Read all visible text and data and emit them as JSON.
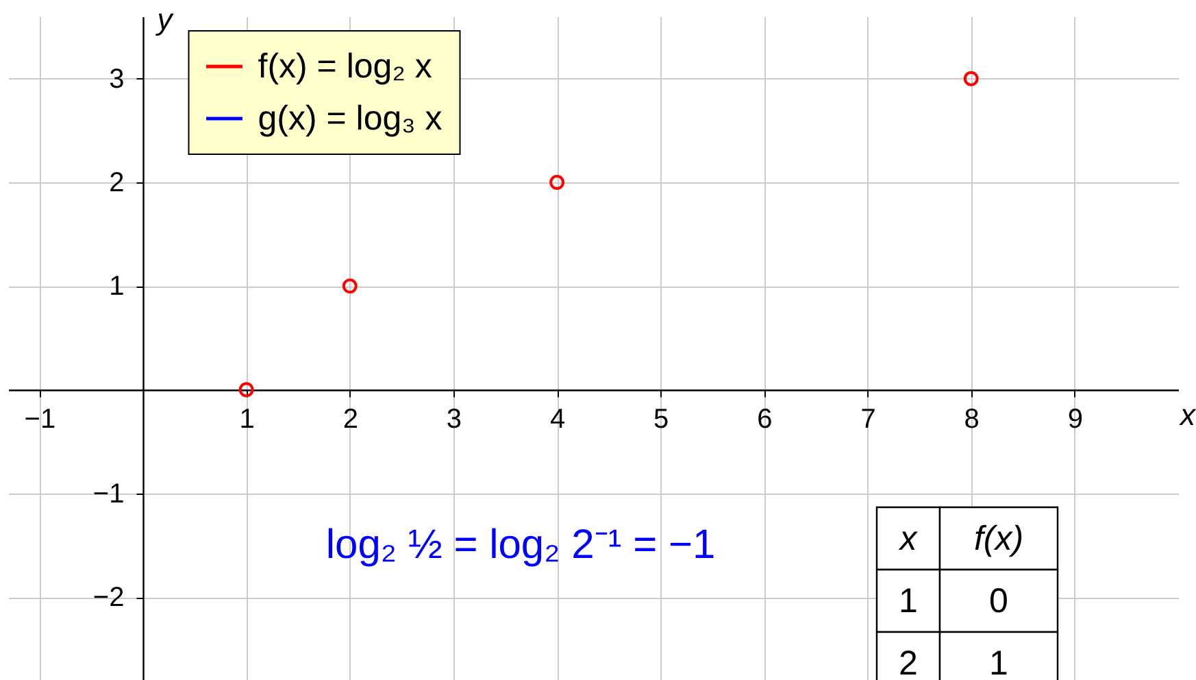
{
  "chart_data": {
    "type": "scatter",
    "xlabel": "x",
    "ylabel": "y",
    "xlim": [
      -1.3,
      10
    ],
    "ylim": [
      -2.8,
      3.6
    ],
    "xticks": [
      -1,
      1,
      2,
      3,
      4,
      5,
      6,
      7,
      8,
      9
    ],
    "yticks": [
      -2,
      -1,
      1,
      2,
      3
    ],
    "grid": true,
    "legend": "top left",
    "marker": "circle",
    "series": [
      {
        "name": "f(x) = log₂ x",
        "color": "#ff0000",
        "x": [
          1,
          2,
          4,
          8
        ],
        "values": [
          0,
          1,
          2,
          3
        ]
      },
      {
        "name": "g(x) = log₃ x",
        "color": "#0000ff"
      }
    ],
    "annotations": [
      "log₂ ½ = log₂ 2⁻¹ = −1",
      "x",
      "f(x)",
      "1",
      "0",
      "2",
      "1"
    ]
  }
}
